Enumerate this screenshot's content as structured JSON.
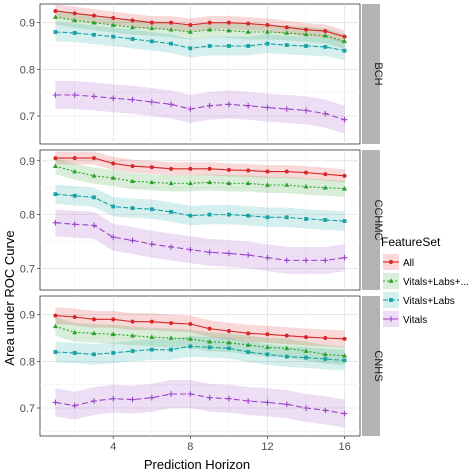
{
  "chart_data": {
    "type": "line",
    "ylabel": "Area under ROC Curve",
    "xlabel": "Prediction Horizon",
    "x": [
      1,
      2,
      3,
      4,
      5,
      6,
      7,
      8,
      9,
      10,
      11,
      12,
      13,
      14,
      15,
      16
    ],
    "xticks": [
      4,
      8,
      12,
      16
    ],
    "legend": {
      "title": "FeatureSet",
      "placement": "right",
      "entries": [
        "All",
        "Vitals+Labs+...",
        "Vitals+Labs",
        "Vitals"
      ]
    },
    "colors": {
      "All": "#d62728",
      "Vitals+Labs+...": "#2ca02c",
      "Vitals+Labs": "#17a3a3",
      "Vitals": "#9a45c8"
    },
    "panels": [
      {
        "strip": "BCH",
        "ylim": [
          0.64,
          0.94
        ],
        "yticks": [
          0.7,
          0.8,
          0.9
        ],
        "series": [
          {
            "name": "All",
            "values": [
              0.925,
              0.92,
              0.915,
              0.91,
              0.905,
              0.9,
              0.9,
              0.895,
              0.9,
              0.9,
              0.898,
              0.895,
              0.89,
              0.885,
              0.882,
              0.87
            ],
            "band": 0.014
          },
          {
            "name": "Vitals+Labs+...",
            "values": [
              0.912,
              0.905,
              0.9,
              0.895,
              0.89,
              0.888,
              0.885,
              0.88,
              0.885,
              0.883,
              0.88,
              0.88,
              0.878,
              0.875,
              0.872,
              0.86
            ],
            "band": 0.016
          },
          {
            "name": "Vitals+Labs",
            "values": [
              0.88,
              0.878,
              0.874,
              0.87,
              0.865,
              0.86,
              0.855,
              0.845,
              0.85,
              0.85,
              0.85,
              0.855,
              0.852,
              0.85,
              0.848,
              0.84
            ],
            "band": 0.02
          },
          {
            "name": "Vitals",
            "values": [
              0.745,
              0.745,
              0.742,
              0.738,
              0.735,
              0.73,
              0.725,
              0.715,
              0.722,
              0.725,
              0.722,
              0.718,
              0.715,
              0.712,
              0.705,
              0.692
            ],
            "band": 0.03
          }
        ]
      },
      {
        "strip": "CCHMC",
        "ylim": [
          0.66,
          0.92
        ],
        "yticks": [
          0.7,
          0.8,
          0.9
        ],
        "series": [
          {
            "name": "All",
            "values": [
              0.905,
              0.905,
              0.905,
              0.895,
              0.89,
              0.888,
              0.885,
              0.885,
              0.885,
              0.883,
              0.882,
              0.88,
              0.88,
              0.878,
              0.875,
              0.872
            ],
            "band": 0.012
          },
          {
            "name": "Vitals+Labs+...",
            "values": [
              0.89,
              0.88,
              0.872,
              0.868,
              0.862,
              0.86,
              0.858,
              0.858,
              0.86,
              0.858,
              0.858,
              0.855,
              0.855,
              0.852,
              0.85,
              0.848
            ],
            "band": 0.015
          },
          {
            "name": "Vitals+Labs",
            "values": [
              0.838,
              0.835,
              0.832,
              0.815,
              0.812,
              0.81,
              0.805,
              0.798,
              0.8,
              0.8,
              0.798,
              0.795,
              0.795,
              0.792,
              0.79,
              0.788
            ],
            "band": 0.018
          },
          {
            "name": "Vitals",
            "values": [
              0.785,
              0.782,
              0.78,
              0.758,
              0.752,
              0.745,
              0.74,
              0.735,
              0.73,
              0.728,
              0.725,
              0.72,
              0.715,
              0.715,
              0.715,
              0.72
            ],
            "band": 0.025
          }
        ]
      },
      {
        "strip": "CNHS",
        "ylim": [
          0.64,
          0.94
        ],
        "yticks": [
          0.7,
          0.8,
          0.9
        ],
        "series": [
          {
            "name": "All",
            "values": [
              0.898,
              0.895,
              0.89,
              0.89,
              0.885,
              0.885,
              0.882,
              0.88,
              0.87,
              0.865,
              0.86,
              0.858,
              0.855,
              0.852,
              0.85,
              0.848
            ],
            "band": 0.018
          },
          {
            "name": "Vitals+Labs+...",
            "values": [
              0.875,
              0.862,
              0.86,
              0.858,
              0.855,
              0.852,
              0.85,
              0.848,
              0.842,
              0.84,
              0.835,
              0.83,
              0.828,
              0.822,
              0.815,
              0.812
            ],
            "band": 0.02
          },
          {
            "name": "Vitals+Labs",
            "values": [
              0.82,
              0.818,
              0.815,
              0.818,
              0.822,
              0.825,
              0.825,
              0.832,
              0.83,
              0.828,
              0.82,
              0.815,
              0.81,
              0.808,
              0.805,
              0.802
            ],
            "band": 0.022
          },
          {
            "name": "Vitals",
            "values": [
              0.712,
              0.705,
              0.715,
              0.72,
              0.718,
              0.722,
              0.73,
              0.73,
              0.722,
              0.72,
              0.715,
              0.712,
              0.708,
              0.7,
              0.695,
              0.688
            ],
            "band": 0.03
          }
        ]
      }
    ]
  }
}
